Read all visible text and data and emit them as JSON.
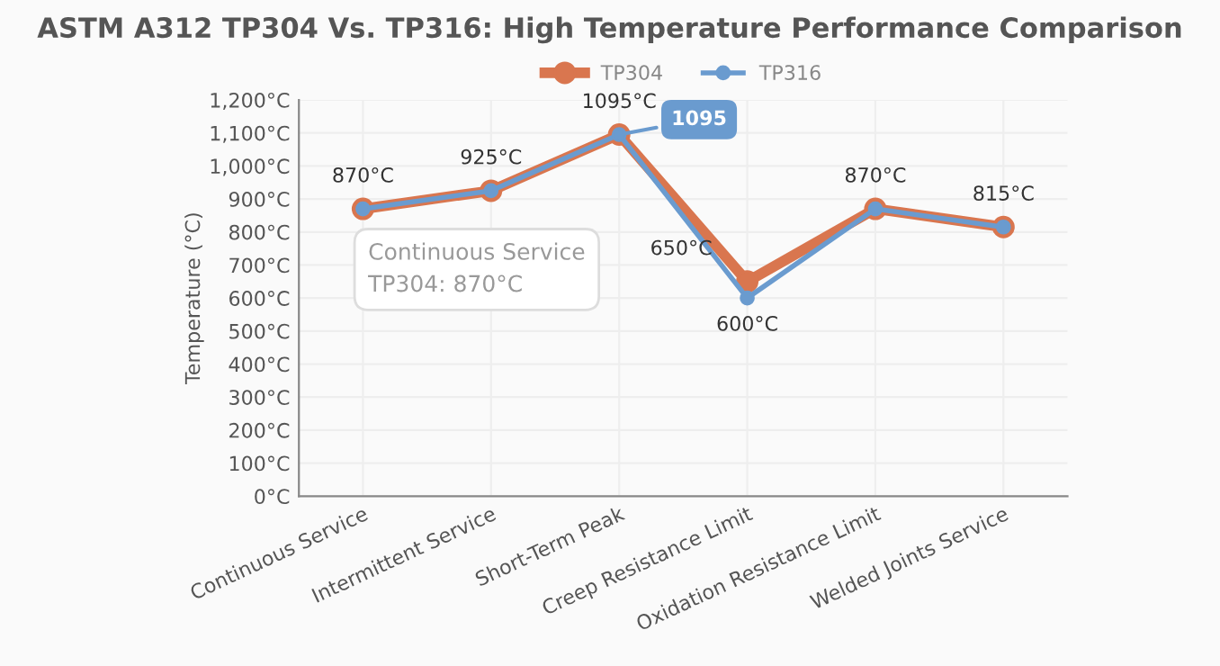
{
  "chart_data": {
    "type": "line",
    "title": "ASTM A312 TP304 Vs. TP316: High Temperature Performance Comparison",
    "ylabel": "Temperature (°C)",
    "categories": [
      "Continuous Service",
      "Intermittent Service",
      "Short-Term Peak",
      "Creep Resistance Limit",
      "Oxidation Resistance Limit",
      "Welded Joints Service"
    ],
    "series": [
      {
        "name": "TP304",
        "color": "#d9764f",
        "values": [
          870,
          925,
          1095,
          650,
          870,
          815
        ],
        "value_labels": [
          "870°C",
          "925°C",
          "1095°C",
          "650°C",
          "870°C",
          "815°C"
        ]
      },
      {
        "name": "TP316",
        "color": "#6a9bcf",
        "values": [
          870,
          925,
          1095,
          600,
          870,
          815
        ],
        "value_labels": [
          null,
          null,
          null,
          "600°C",
          null,
          null
        ]
      }
    ],
    "ylim": [
      0,
      1200
    ],
    "yticks": [
      {
        "value": 0,
        "label": "0°C"
      },
      {
        "value": 100,
        "label": "100°C"
      },
      {
        "value": 200,
        "label": "200°C"
      },
      {
        "value": 300,
        "label": "300°C"
      },
      {
        "value": 400,
        "label": "400°C"
      },
      {
        "value": 500,
        "label": "500°C"
      },
      {
        "value": 600,
        "label": "600°C"
      },
      {
        "value": 700,
        "label": "700°C"
      },
      {
        "value": 800,
        "label": "800°C"
      },
      {
        "value": 900,
        "label": "900°C"
      },
      {
        "value": 1000,
        "label": "1,000°C"
      },
      {
        "value": 1100,
        "label": "1,100°C"
      },
      {
        "value": 1200,
        "label": "1,200°C"
      }
    ],
    "annotations": [
      {
        "text": "1095",
        "x": "Short-Term Peak",
        "y": 1095
      },
      "Continuous Service\nTP304: 870°C"
    ],
    "grid": true,
    "legend": "top",
    "marker": "circle",
    "line_style": "solid"
  }
}
